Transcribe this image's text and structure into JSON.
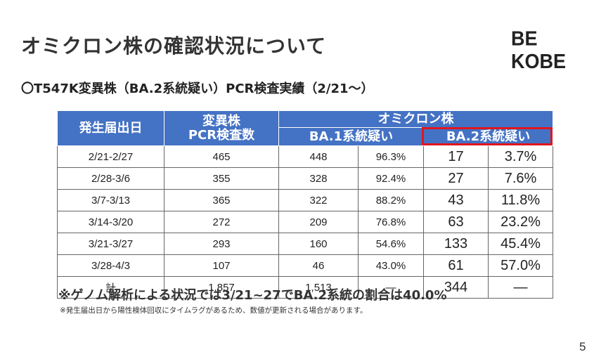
{
  "slide": {
    "title": "オミクロン株の確認状況について",
    "logo": "BE KOBE",
    "subtitle": "〇T547K変異株（BA.2系統疑い）PCR検査実績（2/21～）",
    "page_number": "5"
  },
  "table": {
    "header": {
      "col_date": "発生届出日",
      "col_pcr_line1": "変異株",
      "col_pcr_line2": "PCR検査数",
      "col_omicron": "オミクロン株",
      "col_ba1": "BA.1系統疑い",
      "col_ba2": "BA.2系統疑い"
    },
    "rows": [
      {
        "date": "2/21-2/27",
        "pcr": "465",
        "ba1_count": "448",
        "ba1_pct": "96.3%",
        "ba2_count": "17",
        "ba2_pct": "3.7%"
      },
      {
        "date": "2/28-3/6",
        "pcr": "355",
        "ba1_count": "328",
        "ba1_pct": "92.4%",
        "ba2_count": "27",
        "ba2_pct": "7.6%"
      },
      {
        "date": "3/7-3/13",
        "pcr": "365",
        "ba1_count": "322",
        "ba1_pct": "88.2%",
        "ba2_count": "43",
        "ba2_pct": "11.8%"
      },
      {
        "date": "3/14-3/20",
        "pcr": "272",
        "ba1_count": "209",
        "ba1_pct": "76.8%",
        "ba2_count": "63",
        "ba2_pct": "23.2%"
      },
      {
        "date": "3/21-3/27",
        "pcr": "293",
        "ba1_count": "160",
        "ba1_pct": "54.6%",
        "ba2_count": "133",
        "ba2_pct": "45.4%"
      },
      {
        "date": "3/28-4/3",
        "pcr": "107",
        "ba1_count": "46",
        "ba1_pct": "43.0%",
        "ba2_count": "61",
        "ba2_pct": "57.0%"
      },
      {
        "date": "計",
        "pcr": "1,857",
        "ba1_count": "1,513",
        "ba1_pct": "―",
        "ba2_count": "344",
        "ba2_pct": "―"
      }
    ]
  },
  "notes": {
    "main": "※ゲノム解析による状況では3/21~27でBA.2系統の割合は40.0%",
    "footnote": "※発生届出日から陽性検体回収にタイムラグがあるため、数値が更新される場合があります。"
  },
  "colors": {
    "header_bg": "#4472c4",
    "highlight_border": "#e0161e"
  }
}
